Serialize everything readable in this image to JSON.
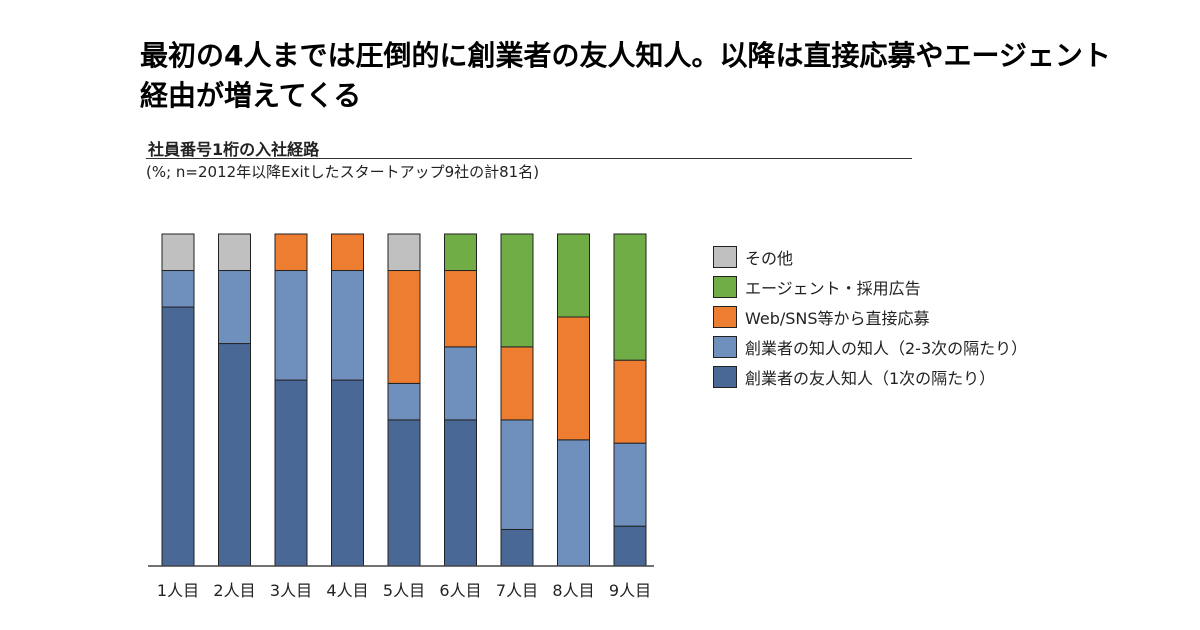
{
  "headline": "最初の4人までは圧倒的に創業者の友人知人。以降は直接応募やエージェント経由が増えてくる",
  "chart_title": "社員番号1桁の入社経路",
  "chart_subtitle": "(%; n=2012年以降Exitしたスタートアップ9社の計81名)",
  "chart_data": {
    "type": "bar",
    "stacked": true,
    "categories": [
      "1人目",
      "2人目",
      "3人目",
      "4人目",
      "5人目",
      "6人目",
      "7人目",
      "8人目",
      "9人目"
    ],
    "ylim": [
      0,
      100
    ],
    "series": [
      {
        "name": "創業者の友人知人（1次の隔たり）",
        "color": "#4a6896",
        "values": [
          78,
          67,
          56,
          56,
          44,
          44,
          11,
          0,
          12
        ]
      },
      {
        "name": "創業者の知人の知人（2-3次の隔たり）",
        "color": "#6f8fbd",
        "values": [
          11,
          22,
          33,
          33,
          11,
          22,
          33,
          38,
          25
        ]
      },
      {
        "name": "Web/SNS等から直接応募",
        "color": "#ed7d31",
        "values": [
          0,
          0,
          11,
          11,
          34,
          23,
          22,
          37,
          25
        ]
      },
      {
        "name": "エージェント・採用広告",
        "color": "#70ad47",
        "values": [
          0,
          0,
          0,
          0,
          0,
          11,
          34,
          25,
          38
        ]
      },
      {
        "name": "その他",
        "color": "#c0c0c0",
        "values": [
          11,
          11,
          0,
          0,
          11,
          0,
          0,
          0,
          0
        ]
      }
    ],
    "legend_order": [
      "その他",
      "エージェント・採用広告",
      "Web/SNS等から直接応募",
      "創業者の知人の知人（2-3次の隔たり）",
      "創業者の友人知人（1次の隔たり）"
    ]
  }
}
